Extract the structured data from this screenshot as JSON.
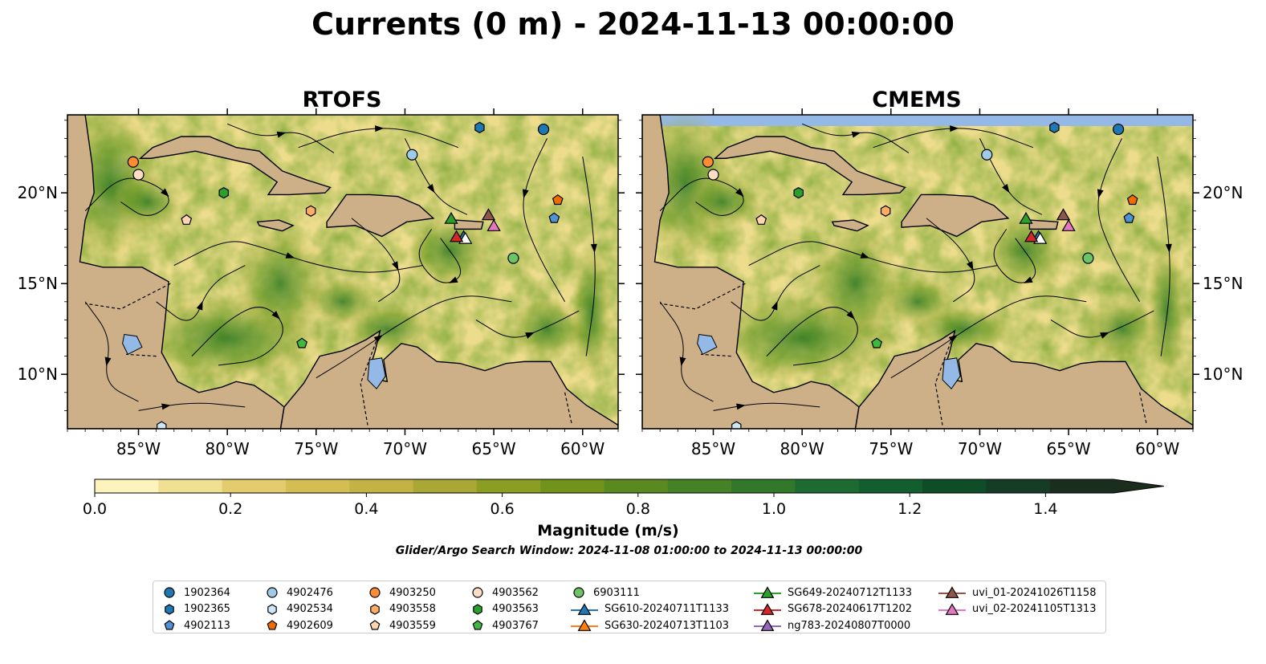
{
  "title": "Currents (0 m) - 2024-11-13 00:00:00",
  "panels": [
    {
      "id": "rtofs",
      "title": "RTOFS"
    },
    {
      "id": "cmems",
      "title": "CMEMS"
    }
  ],
  "map": {
    "lon_range": [
      -89,
      -58
    ],
    "lat_range": [
      7,
      24.3
    ],
    "lon_ticks": [
      {
        "value": -85,
        "label": "85°W"
      },
      {
        "value": -80,
        "label": "80°W"
      },
      {
        "value": -75,
        "label": "75°W"
      },
      {
        "value": -70,
        "label": "70°W"
      },
      {
        "value": -65,
        "label": "65°W"
      },
      {
        "value": -60,
        "label": "60°W"
      }
    ],
    "lat_ticks": [
      {
        "value": 20,
        "label": "20°N"
      },
      {
        "value": 15,
        "label": "15°N"
      },
      {
        "value": 10,
        "label": "10°N"
      }
    ],
    "colors": {
      "land": "#cdb088",
      "lake": "#94b9e6",
      "coast": "#000000",
      "border": "#000000"
    }
  },
  "colorbar": {
    "label": "Magnitude (m/s)",
    "min": 0.0,
    "max": 1.5,
    "extend": "max",
    "ticks": [
      {
        "value": 0.0,
        "label": "0.0"
      },
      {
        "value": 0.2,
        "label": "0.2"
      },
      {
        "value": 0.4,
        "label": "0.4"
      },
      {
        "value": 0.6,
        "label": "0.6"
      },
      {
        "value": 0.8,
        "label": "0.8"
      },
      {
        "value": 1.0,
        "label": "1.0"
      },
      {
        "value": 1.2,
        "label": "1.2"
      },
      {
        "value": 1.4,
        "label": "1.4"
      }
    ],
    "colors": [
      "#fdf4bd",
      "#efe094",
      "#e2cc6e",
      "#d4be54",
      "#c4b344",
      "#a9a735",
      "#8c9d23",
      "#71931c",
      "#5a8a1f",
      "#458225",
      "#32782b",
      "#1e6b31",
      "#135e2e",
      "#0f4d29",
      "#153c25",
      "#1b2d1c"
    ]
  },
  "search_window": "Glider/Argo Search Window: 2024-11-08 01:00:00 to 2024-11-13 00:00:00",
  "legend": {
    "columns": [
      [
        {
          "label": "1902364",
          "marker": "circle",
          "color": "#1f77b4"
        },
        {
          "label": "1902365",
          "marker": "hexagon",
          "color": "#1f77b4"
        },
        {
          "label": "4902113",
          "marker": "pentagon",
          "color": "#4f93d6"
        }
      ],
      [
        {
          "label": "4902476",
          "marker": "circle",
          "color": "#9fcbe8"
        },
        {
          "label": "4902534",
          "marker": "hexagon",
          "color": "#cde6f5"
        },
        {
          "label": "4902609",
          "marker": "pentagon",
          "color": "#ef6c00"
        }
      ],
      [
        {
          "label": "4903250",
          "marker": "circle",
          "color": "#ff8c32"
        },
        {
          "label": "4903558",
          "marker": "hexagon",
          "color": "#ffad66"
        },
        {
          "label": "4903559",
          "marker": "pentagon",
          "color": "#ffd5b0"
        }
      ],
      [
        {
          "label": "4903562",
          "marker": "circle",
          "color": "#ffdcc4"
        },
        {
          "label": "4903563",
          "marker": "hexagon",
          "color": "#2ca02c"
        },
        {
          "label": "4903767",
          "marker": "pentagon",
          "color": "#3fb83f"
        }
      ],
      [
        {
          "label": "6903111",
          "marker": "circle",
          "color": "#6cc466"
        },
        {
          "label": "SG610-20240711T1133",
          "marker": "triangle",
          "color": "#1f77b4",
          "line": true
        },
        {
          "label": "SG630-20240713T1103",
          "marker": "triangle",
          "color": "#ff7f0e",
          "line": true
        }
      ],
      [
        {
          "label": "SG649-20240712T1133",
          "marker": "triangle",
          "color": "#2ca02c",
          "line": true
        },
        {
          "label": "SG678-20240617T1202",
          "marker": "triangle",
          "color": "#d62728",
          "line": true
        },
        {
          "label": "ng783-20240807T0000",
          "marker": "triangle",
          "color": "#9467bd",
          "line": true
        }
      ],
      [
        {
          "label": "uvi_01-20241026T1158",
          "marker": "triangle",
          "color": "#8c564b",
          "line": true
        },
        {
          "label": "uvi_02-20241105T1313",
          "marker": "triangle",
          "color": "#e377c2",
          "line": true
        }
      ]
    ]
  },
  "markers": [
    {
      "lon": -62.2,
      "lat": 23.5,
      "marker": "circle",
      "color": "#1f77b4"
    },
    {
      "lon": -65.8,
      "lat": 23.6,
      "marker": "hexagon",
      "color": "#1f77b4"
    },
    {
      "lon": -61.6,
      "lat": 18.6,
      "marker": "pentagon",
      "color": "#4f93d6"
    },
    {
      "lon": -69.6,
      "lat": 22.1,
      "marker": "circle",
      "color": "#9fcbe8"
    },
    {
      "lon": -83.7,
      "lat": 7.1,
      "marker": "hexagon",
      "color": "#cde6f5"
    },
    {
      "lon": -61.4,
      "lat": 19.6,
      "marker": "pentagon",
      "color": "#ef6c00"
    },
    {
      "lon": -85.3,
      "lat": 21.7,
      "marker": "circle",
      "color": "#ff8c32"
    },
    {
      "lon": -75.3,
      "lat": 19.0,
      "marker": "hexagon",
      "color": "#ffad66"
    },
    {
      "lon": -82.3,
      "lat": 18.5,
      "marker": "pentagon",
      "color": "#ffd5b0"
    },
    {
      "lon": -85.0,
      "lat": 21.0,
      "marker": "circle",
      "color": "#ffdcc4"
    },
    {
      "lon": -80.2,
      "lat": 20.0,
      "marker": "hexagon",
      "color": "#2ca02c"
    },
    {
      "lon": -75.8,
      "lat": 11.7,
      "marker": "pentagon",
      "color": "#3fb83f"
    },
    {
      "lon": -63.9,
      "lat": 16.4,
      "marker": "circle",
      "color": "#6cc466"
    },
    {
      "lon": -66.7,
      "lat": 17.6,
      "marker": "triangle",
      "color": "#1f77b4"
    },
    {
      "lon": -66.6,
      "lat": 17.5,
      "marker": "triangle",
      "color": "#ffffff"
    },
    {
      "lon": -67.4,
      "lat": 18.6,
      "marker": "triangle",
      "color": "#2ca02c"
    },
    {
      "lon": -67.1,
      "lat": 17.6,
      "marker": "triangle",
      "color": "#d62728"
    },
    {
      "lon": -65.3,
      "lat": 18.8,
      "marker": "triangle",
      "color": "#8c564b"
    },
    {
      "lon": -65.0,
      "lat": 18.2,
      "marker": "triangle",
      "color": "#e377c2"
    }
  ]
}
